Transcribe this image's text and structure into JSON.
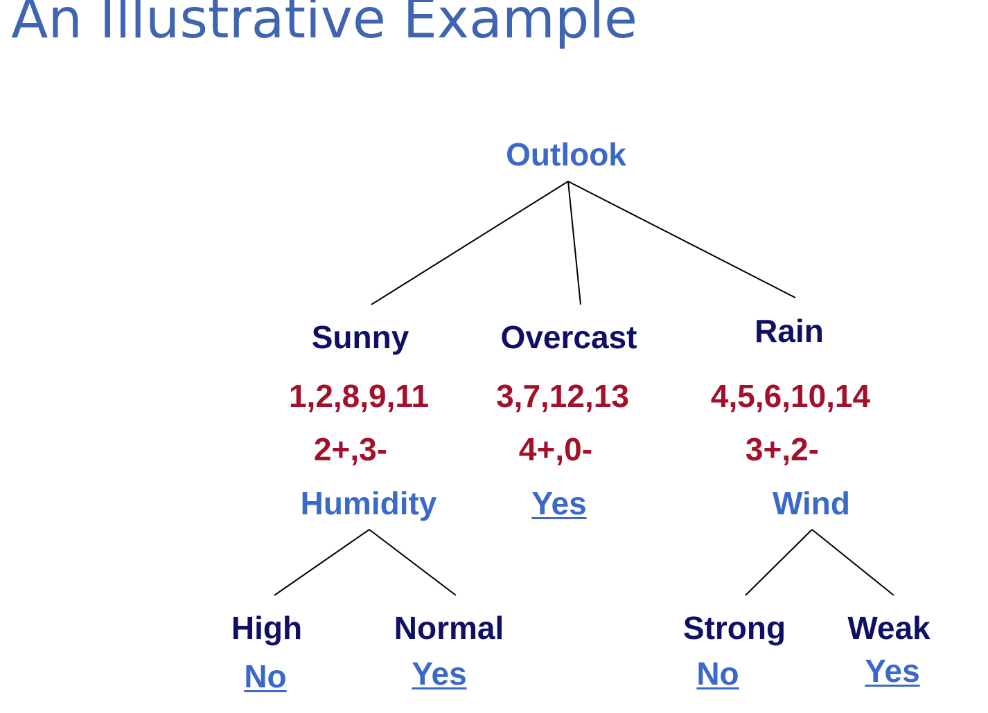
{
  "title": "An Illustrative Example",
  "colors": {
    "title": "#3f64b0",
    "attribute": "#3b69c8",
    "branch_value": "#0f0f66",
    "examples": "#a3102a",
    "edge": "#000000"
  },
  "tree": {
    "root": "Outlook",
    "branches": {
      "sunny": {
        "value": "Sunny",
        "examples": "1,2,8,9,11",
        "counts": "2+,3-",
        "split": "Humidity",
        "children": {
          "high": {
            "value": "High",
            "leaf": "No"
          },
          "normal": {
            "value": "Normal",
            "leaf": "Yes"
          }
        }
      },
      "overcast": {
        "value": "Overcast",
        "examples": "3,7,12,13",
        "counts": "4+,0-",
        "leaf": "Yes"
      },
      "rain": {
        "value": "Rain",
        "examples": "4,5,6,10,14",
        "counts": "3+,2-",
        "split": "Wind",
        "children": {
          "strong": {
            "value": "Strong",
            "leaf": "No"
          },
          "weak": {
            "value": "Weak",
            "leaf": "Yes"
          }
        }
      }
    }
  }
}
